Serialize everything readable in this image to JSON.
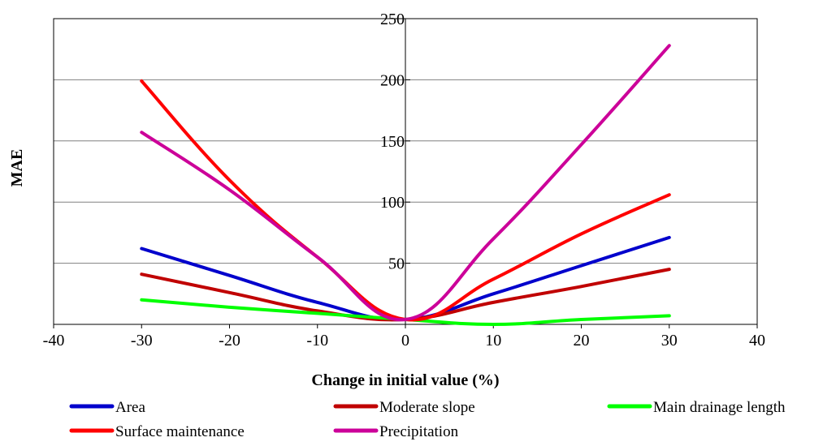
{
  "chart_data": {
    "type": "line",
    "title": "",
    "xlabel": "Change in initial value (%)",
    "ylabel": "MAE",
    "xlim": [
      -40,
      40
    ],
    "ylim": [
      0,
      250
    ],
    "x_ticks": [
      -40,
      -30,
      -20,
      -10,
      0,
      10,
      20,
      30,
      40
    ],
    "y_ticks": [
      50,
      100,
      150,
      200,
      250
    ],
    "grid": "horizontal",
    "legend_position": "bottom",
    "series": [
      {
        "name": "Area",
        "color": "#0000CC",
        "x": [
          -30,
          -20,
          -10,
          0,
          10,
          20,
          30
        ],
        "y": [
          62,
          40,
          18,
          4,
          25,
          48,
          71
        ]
      },
      {
        "name": "Moderate slope",
        "color": "#C00000",
        "x": [
          -30,
          -20,
          -10,
          0,
          10,
          20,
          30
        ],
        "y": [
          41,
          26,
          11,
          4,
          18,
          31,
          45
        ]
      },
      {
        "name": "Main drainage length",
        "color": "#00FF00",
        "x": [
          -30,
          -20,
          -10,
          0,
          10,
          20,
          30
        ],
        "y": [
          20,
          14,
          9,
          4,
          0,
          4,
          7
        ]
      },
      {
        "name": "Surface maintenance",
        "color": "#FF0000",
        "x": [
          -30,
          -20,
          -10,
          0,
          10,
          20,
          30
        ],
        "y": [
          199,
          118,
          55,
          4,
          37,
          74,
          106
        ]
      },
      {
        "name": "Precipitation",
        "color": "#CC0099",
        "x": [
          -30,
          -20,
          -10,
          0,
          10,
          20,
          30
        ],
        "y": [
          157,
          110,
          55,
          4,
          70,
          147,
          228
        ]
      }
    ]
  }
}
